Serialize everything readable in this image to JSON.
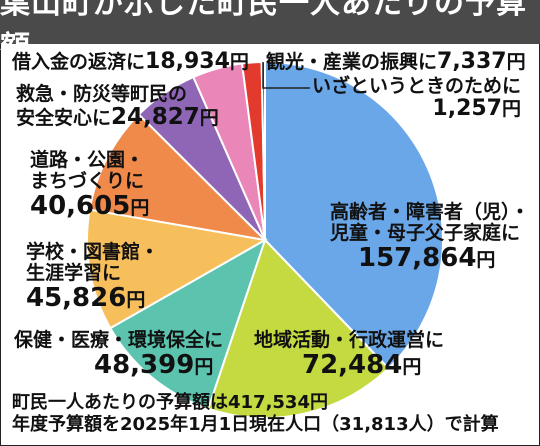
{
  "chart_data": {
    "type": "pie",
    "title": "葉山町が示した町民一人あたりの予算額",
    "unit": "円",
    "slices": [
      {
        "label": "高齢者・障害者（児）・児童・母子父子家庭に",
        "value": 157864,
        "value_text": "157,864",
        "color": "#6aa7e8"
      },
      {
        "label": "地域活動・行政運営に",
        "value": 72484,
        "value_text": "72,484",
        "color": "#c5d940"
      },
      {
        "label": "保健・医療・環境保全に",
        "value": 48399,
        "value_text": "48,399",
        "color": "#5cc4ae"
      },
      {
        "label": "学校・図書館・生涯学習に",
        "value": 45826,
        "value_text": "45,826",
        "color": "#f7bf5c"
      },
      {
        "label": "道路・公園・まちづくりに",
        "value": 40605,
        "value_text": "40,605",
        "color": "#f08a4b"
      },
      {
        "label": "救急・防災等町民の安全安心に",
        "value": 24827,
        "value_text": "24,827",
        "color": "#8f66b5"
      },
      {
        "label": "借入金の返済に",
        "value": 18934,
        "value_text": "18,934",
        "color": "#ea86b8"
      },
      {
        "label": "観光・産業の振興に",
        "value": 7337,
        "value_text": "7,337",
        "color": "#e23a2c"
      },
      {
        "label": "いざというときのために",
        "value": 1257,
        "value_text": "1,257",
        "color": "#555555"
      }
    ]
  },
  "labels": {
    "elderly": {
      "t1": "高齢者・障害者（児）・",
      "t2": "児童・母子父子家庭に",
      "v": "157,864",
      "u": "円"
    },
    "community": {
      "t": "地域活動・行政運営に",
      "v": "72,484",
      "u": "円"
    },
    "health": {
      "t": "保健・医療・環境保全に",
      "v": "48,399",
      "u": "円"
    },
    "school": {
      "t1": "学校・図書館・",
      "t2": "生涯学習に",
      "v": "45,826",
      "u": "円"
    },
    "roads": {
      "t1": "道路・公園・",
      "t2": "まちづくりに",
      "v": "40,605",
      "u": "円"
    },
    "safety": {
      "t1": "救急・防災等町民の",
      "t2": "安全安心に",
      "v": "24,827",
      "u": "円"
    },
    "debt": {
      "t": "借入金の返済に",
      "v": "18,934",
      "u": "円"
    },
    "tourism": {
      "t": "観光・産業の振興に",
      "v": "7,337",
      "u": "円"
    },
    "emergency": {
      "t": "いざというときのために",
      "v": "1,257",
      "u": "円"
    }
  },
  "footnote": {
    "line1": "町民一人あたりの予算額は417,534円",
    "line2": "年度予算額を2025年1月1日現在人口（31,813人）で計算"
  }
}
